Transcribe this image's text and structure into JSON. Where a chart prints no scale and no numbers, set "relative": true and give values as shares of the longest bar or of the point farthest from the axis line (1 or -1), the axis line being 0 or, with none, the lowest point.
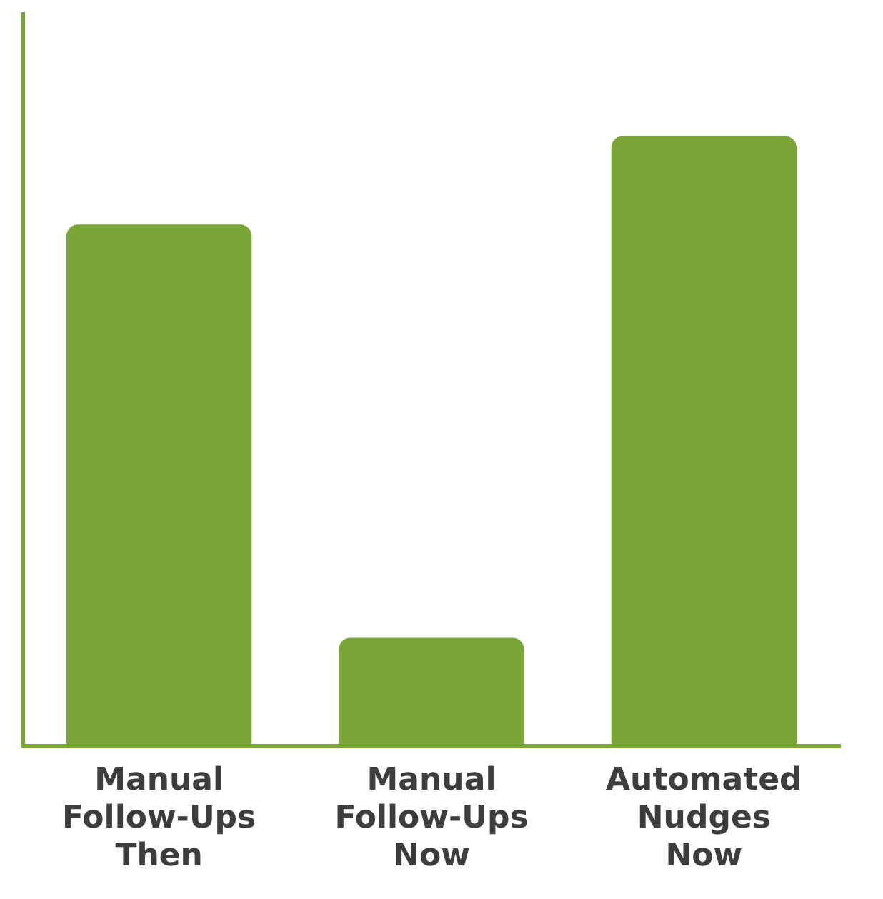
{
  "chart_data": {
    "type": "bar",
    "relative": true,
    "categories": [
      "Manual Follow-Ups Then",
      "Manual Follow-Ups Now",
      "Automated Nudges Now"
    ],
    "values": [
      0.855,
      0.177,
      1
    ],
    "color": "#7aa537"
  }
}
